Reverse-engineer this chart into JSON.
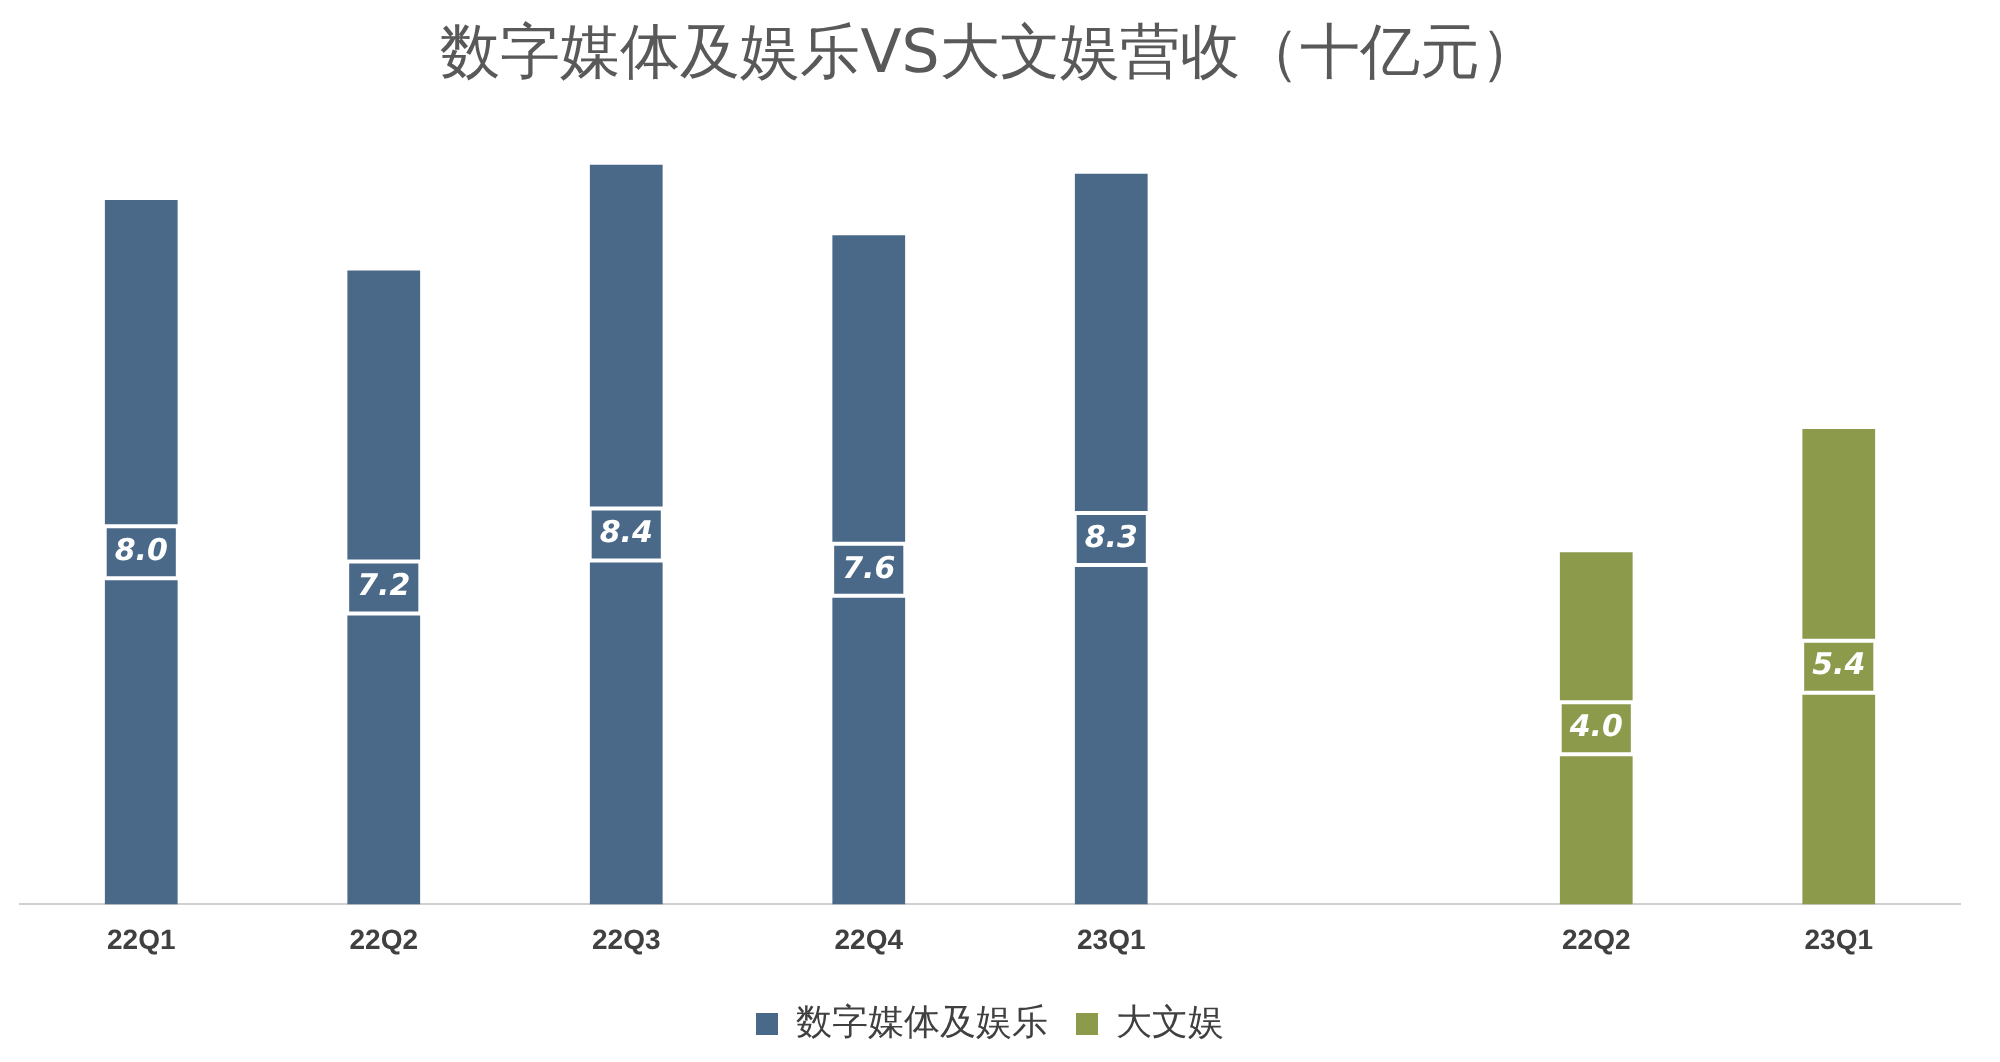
{
  "chart_data": {
    "type": "bar",
    "title": "数字媒体及娱乐VS大文娱营收（十亿元）",
    "categories": [
      "22Q1",
      "22Q2",
      "22Q3",
      "22Q4",
      "23Q1",
      null,
      "22Q2",
      "23Q1"
    ],
    "series": [
      {
        "name": "数字媒体及娱乐",
        "color": "#4a6988",
        "values": [
          8.0,
          7.2,
          8.4,
          7.6,
          8.3,
          null,
          null,
          null
        ],
        "value_labels": [
          "8.0",
          "7.2",
          "8.4",
          "7.6",
          "8.3",
          null,
          null,
          null
        ]
      },
      {
        "name": "大文娱",
        "color": "#8c9a4c",
        "values": [
          null,
          null,
          null,
          null,
          null,
          null,
          4.0,
          5.4
        ],
        "value_labels": [
          null,
          null,
          null,
          null,
          null,
          null,
          "4.0",
          "5.4"
        ]
      }
    ],
    "grid": false,
    "legend": "bottom"
  }
}
